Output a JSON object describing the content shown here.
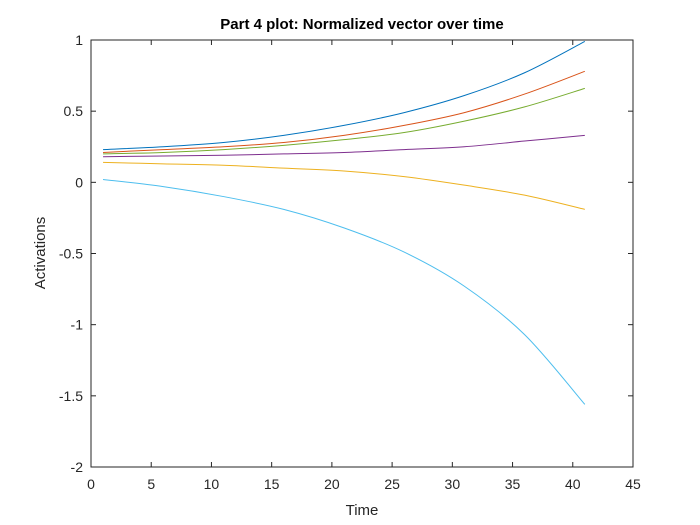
{
  "chart_data": {
    "type": "line",
    "title": "Part 4 plot: Normalized vector over time",
    "xlabel": "Time",
    "ylabel": "Activations",
    "xlim": [
      0,
      45
    ],
    "ylim": [
      -2,
      1
    ],
    "xticks": [
      0,
      5,
      10,
      15,
      20,
      25,
      30,
      35,
      40,
      45
    ],
    "yticks": [
      -2,
      -1.5,
      -1,
      -0.5,
      0,
      0.5,
      1
    ],
    "grid": false,
    "legend": "none",
    "series": [
      {
        "color": "#0072BD",
        "x": [
          1,
          6,
          11,
          16,
          21,
          26,
          31,
          36,
          41
        ],
        "values": [
          0.23,
          0.25,
          0.28,
          0.33,
          0.4,
          0.49,
          0.61,
          0.77,
          0.99
        ]
      },
      {
        "color": "#D95319",
        "x": [
          1,
          6,
          11,
          16,
          21,
          26,
          31,
          36,
          41
        ],
        "values": [
          0.21,
          0.23,
          0.25,
          0.28,
          0.33,
          0.4,
          0.49,
          0.62,
          0.78
        ]
      },
      {
        "color": "#77AC30",
        "x": [
          1,
          6,
          11,
          16,
          21,
          26,
          31,
          36,
          41
        ],
        "values": [
          0.2,
          0.21,
          0.23,
          0.26,
          0.3,
          0.35,
          0.43,
          0.53,
          0.66
        ]
      },
      {
        "color": "#7E2F8E",
        "x": [
          1,
          6,
          11,
          16,
          21,
          26,
          31,
          36,
          41
        ],
        "values": [
          0.18,
          0.185,
          0.19,
          0.2,
          0.21,
          0.23,
          0.25,
          0.29,
          0.33
        ]
      },
      {
        "color": "#EDB120",
        "x": [
          1,
          6,
          11,
          16,
          21,
          26,
          31,
          36,
          41
        ],
        "values": [
          0.14,
          0.13,
          0.12,
          0.1,
          0.08,
          0.04,
          -0.02,
          -0.09,
          -0.19
        ]
      },
      {
        "color": "#4DBEEE",
        "x": [
          1,
          6,
          11,
          16,
          21,
          26,
          31,
          36,
          41
        ],
        "values": [
          0.02,
          -0.03,
          -0.1,
          -0.19,
          -0.32,
          -0.49,
          -0.73,
          -1.07,
          -1.56
        ]
      }
    ]
  }
}
